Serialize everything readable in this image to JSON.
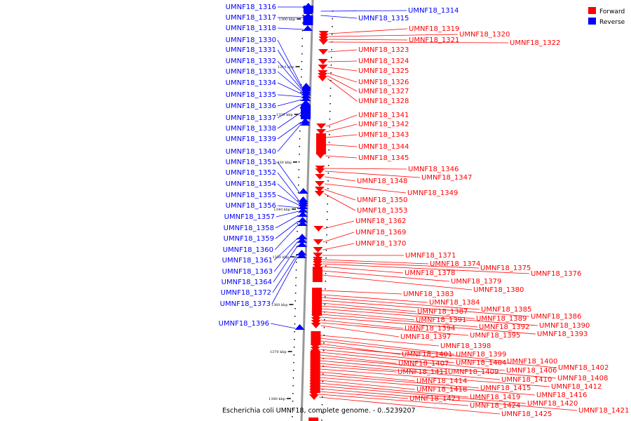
{
  "caption": "Escherichia coli UMNF18, complete genome. - 0..5239207",
  "legend": [
    {
      "label": "Forward",
      "color": "#ff0000"
    },
    {
      "label": "Reverse",
      "color": "#0000ff"
    }
  ],
  "ticks": [
    "1300 kbp",
    "1310 kbp",
    "1320 kbp",
    "1330 kbp",
    "1340 kbp",
    "1350 kbp",
    "1360 kbp",
    "1370 kbp",
    "1380 kbp"
  ],
  "reverse_genes": [
    "UMNF18_1316",
    "UMNF18_1317",
    "UMNF18_1318",
    "UMNF18_1330",
    "UMNF18_1331",
    "UMNF18_1332",
    "UMNF18_1333",
    "UMNF18_1334",
    "UMNF18_1335",
    "UMNF18_1336",
    "UMNF18_1337",
    "UMNF18_1338",
    "UMNF18_1339",
    "UMNF18_1340",
    "UMNF18_1351",
    "UMNF18_1352",
    "UMNF18_1354",
    "UMNF18_1355",
    "UMNF18_1356",
    "UMNF18_1357",
    "UMNF18_1358",
    "UMNF18_1359",
    "UMNF18_1360",
    "UMNF18_1361",
    "UMNF18_1363",
    "UMNF18_1364",
    "UMNF18_1372",
    "UMNF18_1373",
    "UMNF18_1396",
    "UMNF18_1314",
    "UMNF18_1315"
  ],
  "forward_genes": [
    "UMNF18_1319",
    "UMNF18_1320",
    "UMNF18_1321",
    "UMNF18_1322",
    "UMNF18_1323",
    "UMNF18_1324",
    "UMNF18_1325",
    "UMNF18_1326",
    "UMNF18_1327",
    "UMNF18_1328",
    "UMNF18_1341",
    "UMNF18_1342",
    "UMNF18_1343",
    "UMNF18_1344",
    "UMNF18_1345",
    "UMNF18_1346",
    "UMNF18_1347",
    "UMNF18_1348",
    "UMNF18_1349",
    "UMNF18_1350",
    "UMNF18_1353",
    "UMNF18_1362",
    "UMNF18_1369",
    "UMNF18_1370",
    "UMNF18_1371",
    "UMNF18_1374",
    "UMNF18_1375",
    "UMNF18_1376",
    "UMNF18_1378",
    "UMNF18_1379",
    "UMNF18_1380",
    "UMNF18_1383",
    "UMNF18_1384",
    "UMNF18_1385",
    "UMNF18_1386",
    "UMNF18_1387",
    "UMNF18_1389",
    "UMNF18_1390",
    "UMNF18_1391",
    "UMNF18_1392",
    "UMNF18_1393",
    "UMNF18_1394",
    "UMNF18_1395",
    "UMNF18_1397",
    "UMNF18_1398",
    "UMNF18_1399",
    "UMNF18_1400",
    "UMNF18_1401",
    "UMNF18_1402",
    "UMNF18_1404",
    "UMNF18_1406",
    "UMNF18_1407",
    "UMNF18_1408",
    "UMNF18_1409",
    "UMNF18_1410",
    "UMNF18_1411",
    "UMNF18_1412",
    "UMNF18_1414",
    "UMNF18_1415",
    "UMNF18_1416",
    "UMNF18_1418",
    "UMNF18_1419",
    "UMNF18_1420",
    "UMNF18_1421",
    "UMNF18_1423",
    "UMNF18_1424",
    "UMNF18_1425"
  ]
}
